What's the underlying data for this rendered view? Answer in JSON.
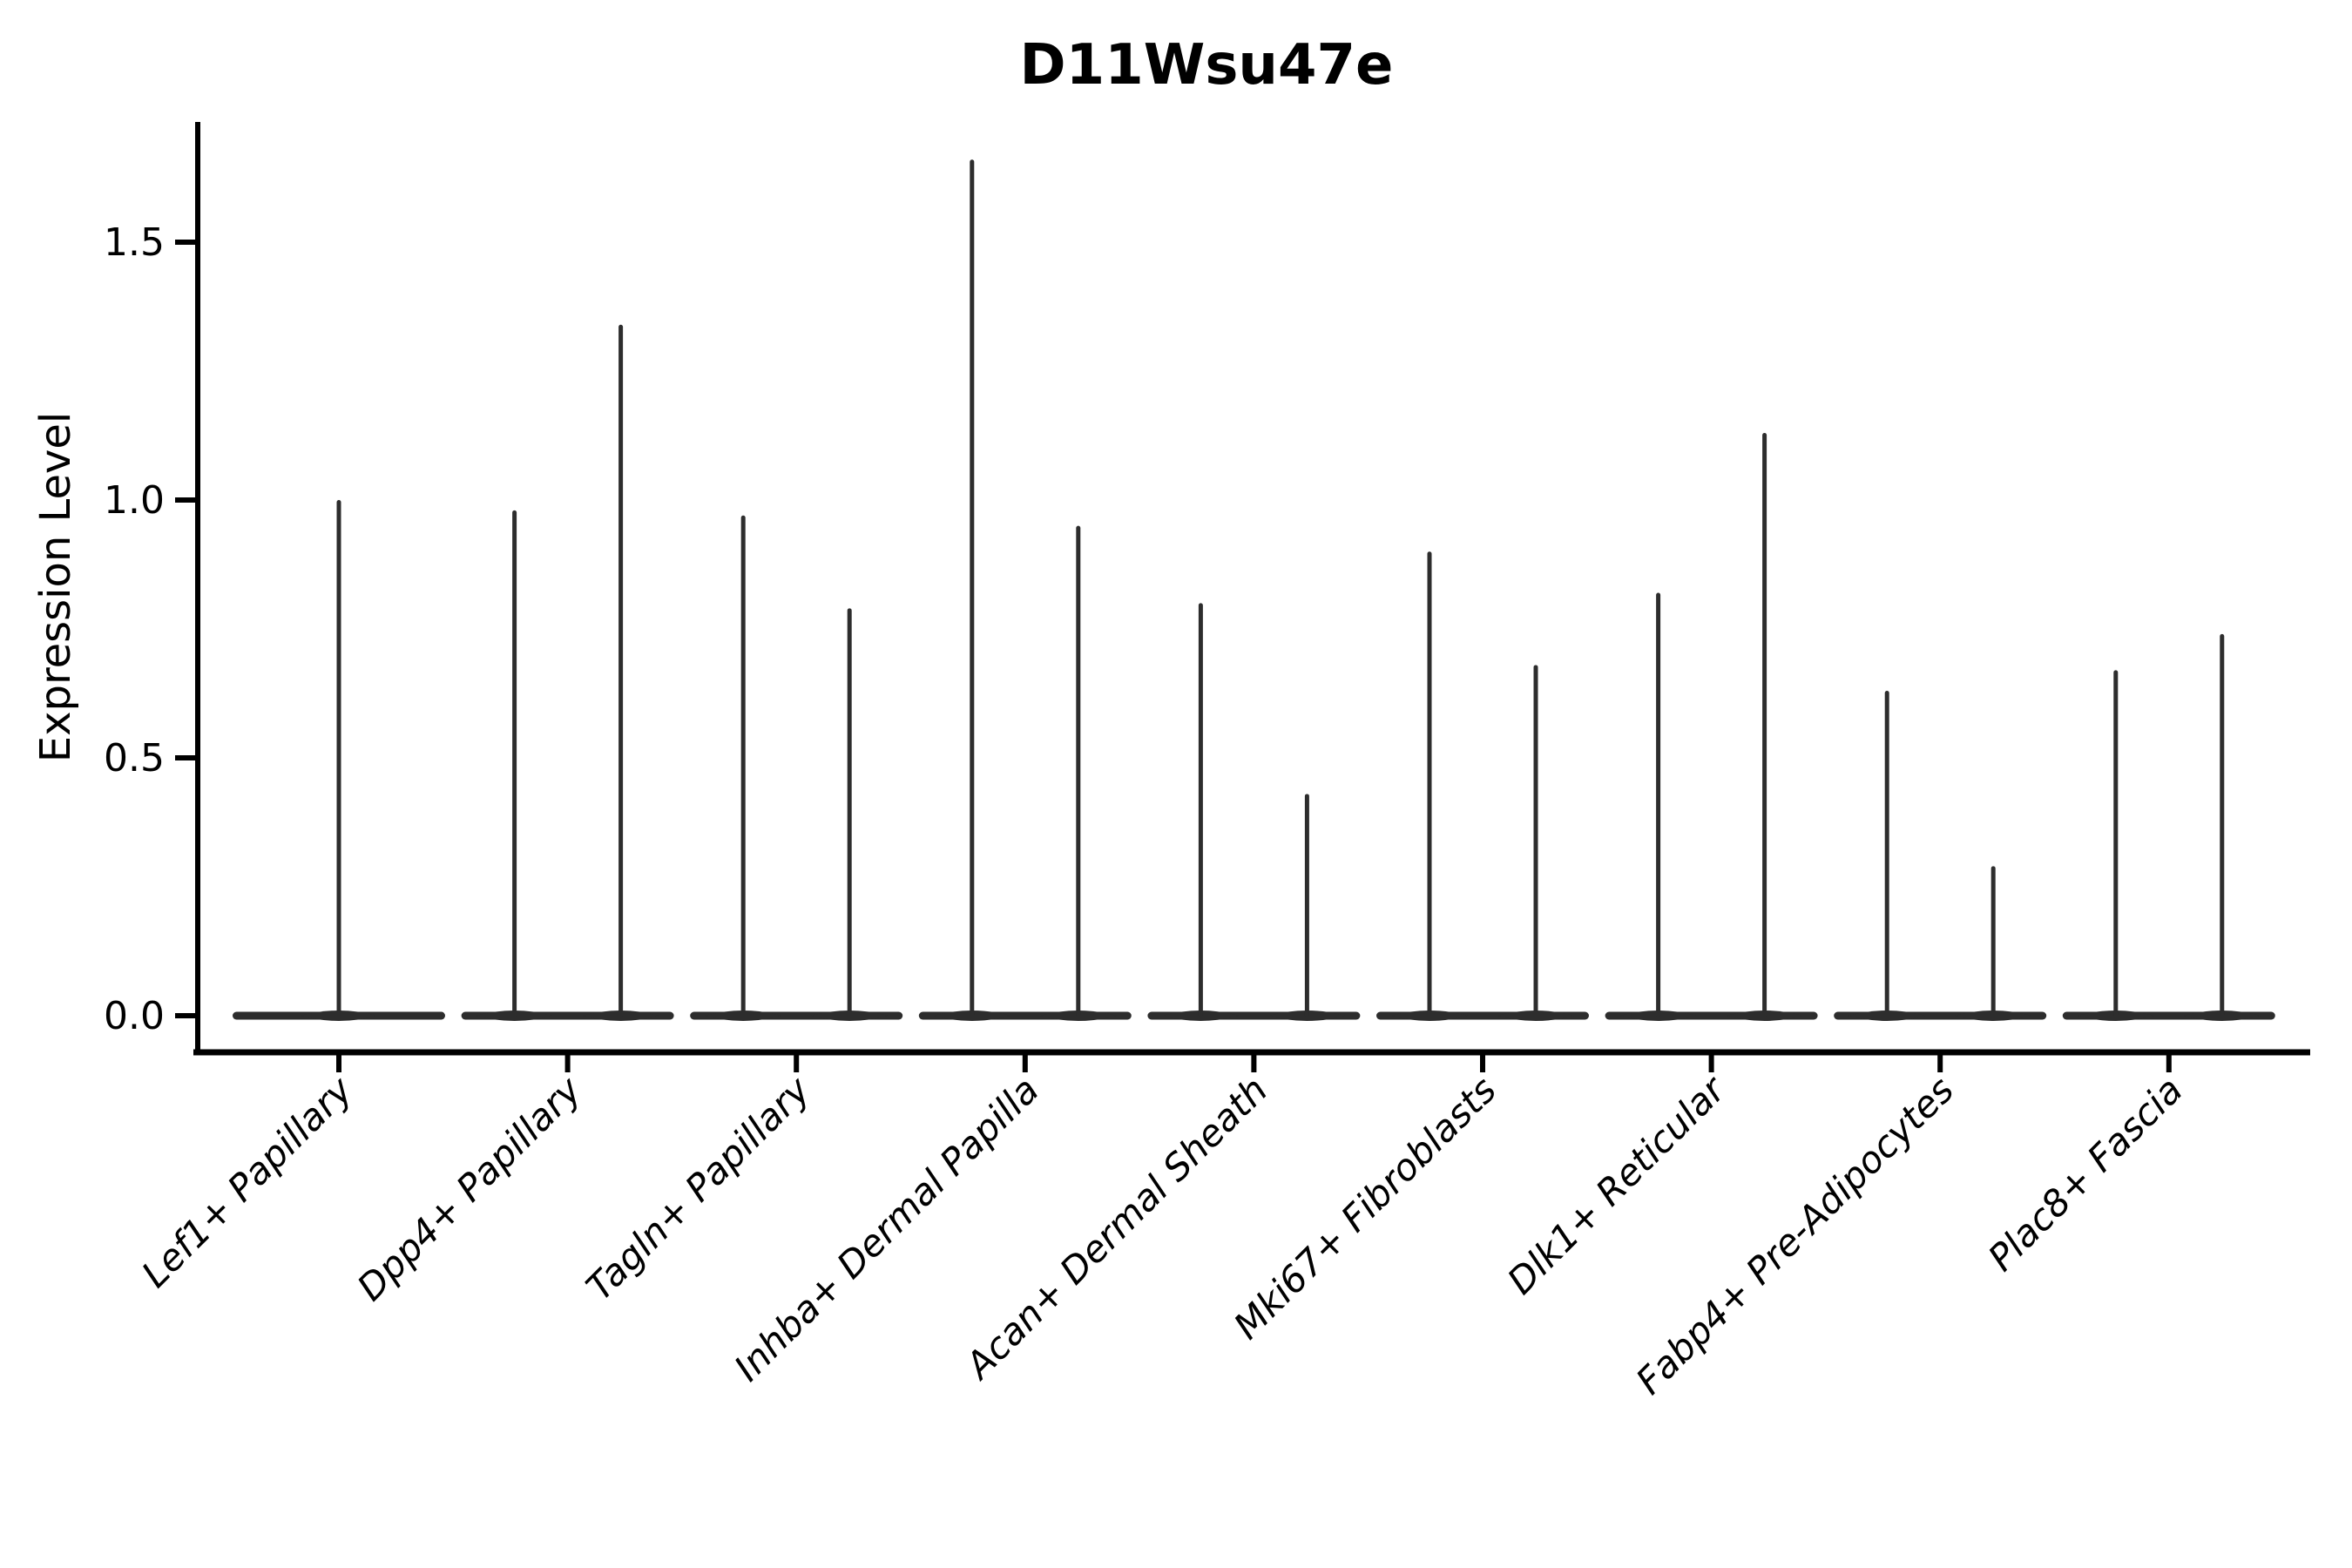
{
  "chart_data": {
    "type": "violin",
    "title": "D11Wsu47e",
    "ylabel": "Expression Level",
    "xlabel": "",
    "background": "#ffffff",
    "violin_color": "#2d2d2d",
    "axis_color": "#000000",
    "ylim": [
      -0.07,
      1.73
    ],
    "grid": false,
    "legend": false,
    "yticks": [
      {
        "value": 0.0,
        "label": "0.0"
      },
      {
        "value": 0.5,
        "label": "0.5"
      },
      {
        "value": 1.0,
        "label": "1.0"
      },
      {
        "value": 1.5,
        "label": "1.5"
      }
    ],
    "categories": [
      {
        "label": "Lef1+ Papillary",
        "violin_max": [
          1.0
        ]
      },
      {
        "label": "Dpp4+ Papillary",
        "violin_max": [
          0.98,
          1.34
        ]
      },
      {
        "label": "Tagln+ Papillary",
        "violin_max": [
          0.97,
          0.79
        ]
      },
      {
        "label": "Inhba+ Dermal Papilla",
        "violin_max": [
          1.66,
          0.95
        ]
      },
      {
        "label": "Acan+ Dermal Sheath",
        "violin_max": [
          0.8,
          0.43
        ]
      },
      {
        "label": "Mki67+ Fibroblasts",
        "violin_max": [
          0.9,
          0.68
        ]
      },
      {
        "label": "Dlk1+ Reticular",
        "violin_max": [
          0.82,
          1.13
        ]
      },
      {
        "label": "Fabp4+ Pre-Adipocytes",
        "violin_max": [
          0.63,
          0.29
        ]
      },
      {
        "label": "Plac8+ Fascia",
        "violin_max": [
          0.67,
          0.74
        ]
      }
    ]
  }
}
